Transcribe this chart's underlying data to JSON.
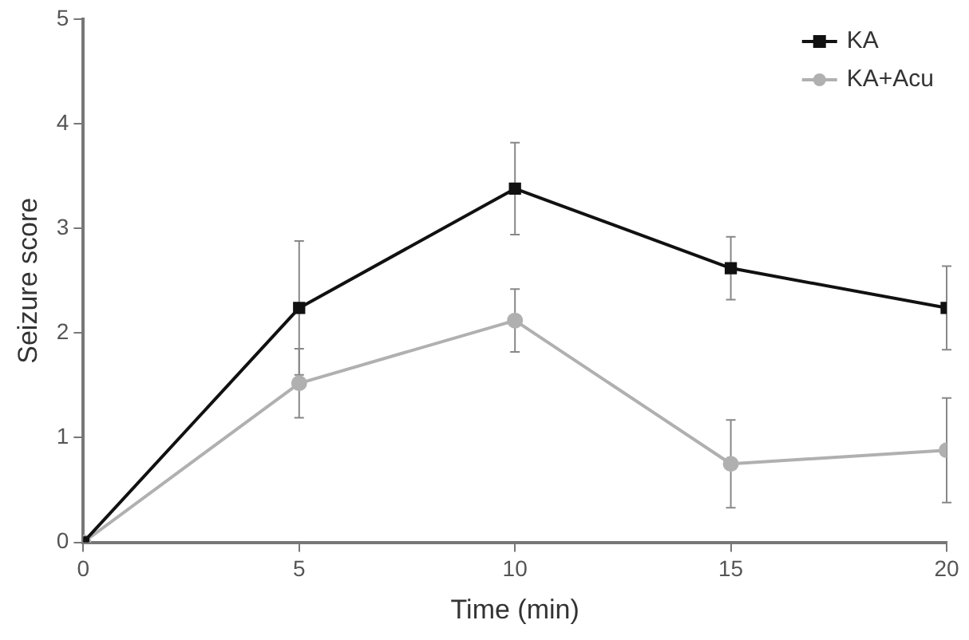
{
  "chart_data": {
    "type": "line",
    "xlabel": "Time (min)",
    "ylabel": "Seizure score",
    "x": [
      0,
      5,
      10,
      15,
      20
    ],
    "series": [
      {
        "name": "KA",
        "color": "#111111",
        "marker": "square",
        "values": [
          0,
          2.24,
          3.38,
          2.62,
          2.24
        ],
        "errors": [
          null,
          0.64,
          0.44,
          0.3,
          0.4
        ]
      },
      {
        "name": "KA+Acu",
        "color": "#b0b0b0",
        "marker": "circle",
        "values": [
          0,
          1.52,
          2.12,
          0.75,
          0.88
        ],
        "errors": [
          null,
          0.33,
          0.3,
          0.42,
          0.5
        ]
      }
    ],
    "xlim": [
      0,
      20
    ],
    "xticks": [
      0,
      5,
      10,
      15,
      20
    ],
    "ylim": [
      0,
      5
    ],
    "yticks": [
      0,
      1,
      2,
      3,
      4,
      5
    ],
    "grid": false,
    "legend": "top right"
  }
}
